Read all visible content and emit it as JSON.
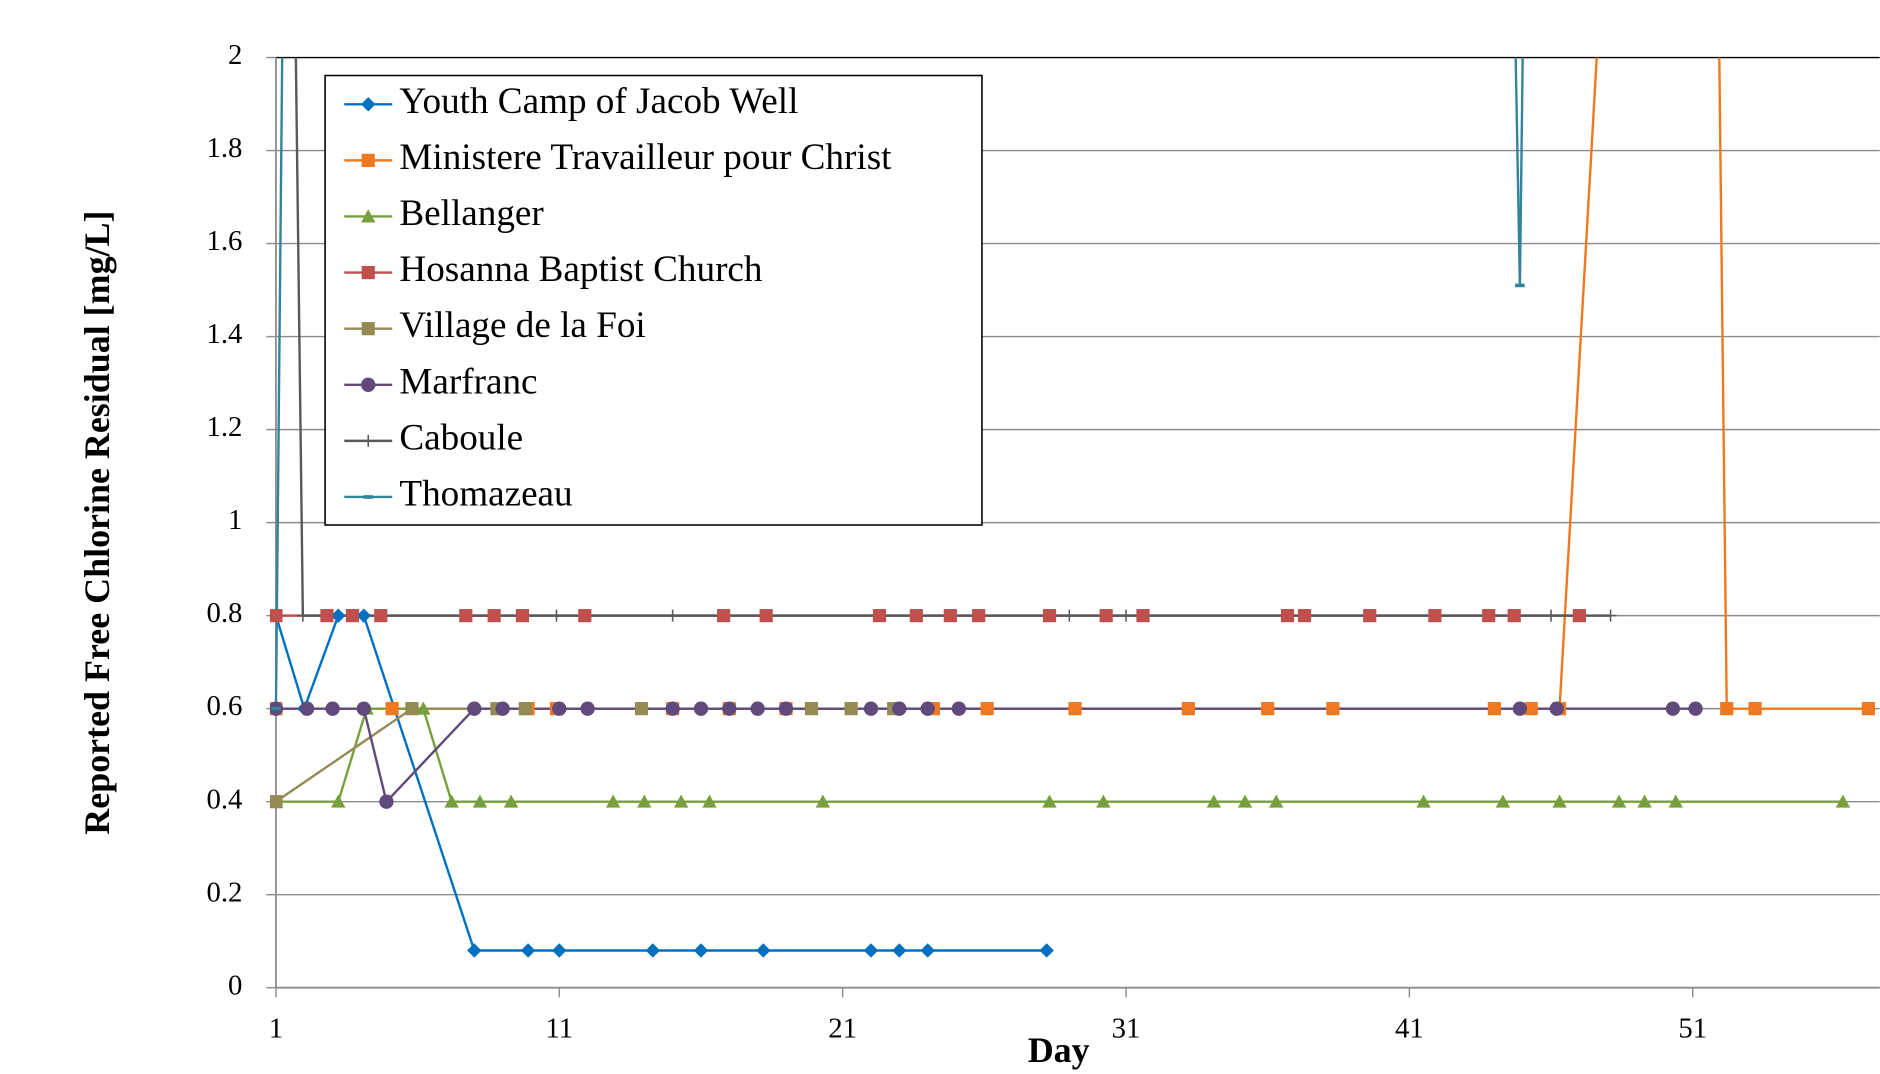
{
  "chart_data": {
    "type": "line",
    "x_label": "Day",
    "y_label": "Reported Free Chlorine Residual [mg/L]",
    "xlim": [
      1,
      57.6
    ],
    "xticks": [
      1,
      11,
      21,
      31,
      41,
      51
    ],
    "ylim": [
      0,
      2
    ],
    "yticks": [
      0,
      0.2,
      0.4,
      0.6,
      0.8,
      1,
      1.2,
      1.4,
      1.6,
      1.8,
      2
    ],
    "grid": true,
    "legend": "upper left",
    "series": [
      {
        "name": "Youth Camp of Jacob Well",
        "color": "#0070c0",
        "marker": "diamond",
        "x": [
          1,
          2,
          3.2,
          4.1,
          8,
          9.9,
          11,
          14.3,
          16,
          18.2,
          22,
          23,
          24,
          28.2
        ],
        "values": [
          0.8,
          0.6,
          0.8,
          0.8,
          0.08,
          0.08,
          0.08,
          0.08,
          0.08,
          0.08,
          0.08,
          0.08,
          0.08,
          0.08
        ]
      },
      {
        "name": "Ministere Travailleur pour Christ",
        "color": "#f07820",
        "marker": "square",
        "x": [
          1,
          5.1,
          9.9,
          10.9,
          15,
          17,
          19,
          24.2,
          26.1,
          29.2,
          33.2,
          36,
          38.3,
          44,
          45.3,
          46.3,
          47.8,
          51.9,
          52.2,
          53.2,
          57.2
        ],
        "values": [
          0.6,
          0.6,
          0.6,
          0.6,
          0.6,
          0.6,
          0.6,
          0.6,
          0.6,
          0.6,
          0.6,
          0.6,
          0.6,
          0.6,
          0.6,
          0.6,
          2.2,
          2.2,
          0.6,
          0.6,
          0.6
        ]
      },
      {
        "name": "Bellanger",
        "color": "#77a03c",
        "marker": "triangle",
        "x": [
          1,
          3.2,
          4.2,
          5.9,
          6.2,
          7.2,
          8.2,
          9.3,
          12.9,
          14,
          15.3,
          16.3,
          20.3,
          28.3,
          30.2,
          34.1,
          35.2,
          36.3,
          41.5,
          44.3,
          46.3,
          48.4,
          49.3,
          50.4,
          56.3
        ],
        "values": [
          0.4,
          0.4,
          0.6,
          0.6,
          0.6,
          0.4,
          0.4,
          0.4,
          0.4,
          0.4,
          0.4,
          0.4,
          0.4,
          0.4,
          0.4,
          0.4,
          0.4,
          0.4,
          0.4,
          0.4,
          0.4,
          0.4,
          0.4,
          0.4,
          0.4
        ]
      },
      {
        "name": "Hosanna Baptist Church",
        "color": "#c0504d",
        "marker": "square",
        "x": [
          1,
          2.8,
          3.7,
          4.7,
          7.7,
          8.7,
          9.7,
          11.9,
          16.8,
          18.3,
          22.3,
          23.6,
          24.8,
          25.8,
          28.3,
          30.3,
          31.6,
          36.7,
          37.3,
          39.6,
          41.9,
          43.8,
          44.7,
          47
        ],
        "values": [
          0.8,
          0.8,
          0.8,
          0.8,
          0.8,
          0.8,
          0.8,
          0.8,
          0.8,
          0.8,
          0.8,
          0.8,
          0.8,
          0.8,
          0.8,
          0.8,
          0.8,
          0.8,
          0.8,
          0.8,
          0.8,
          0.8,
          0.8,
          0.8
        ]
      },
      {
        "name": "Village de la Foi",
        "color": "#948a54",
        "marker": "square",
        "x": [
          1,
          5.8,
          8.8,
          9.8,
          13.9,
          19.9,
          21.3,
          22.8
        ],
        "values": [
          0.4,
          0.6,
          0.6,
          0.6,
          0.6,
          0.6,
          0.6,
          0.6
        ]
      },
      {
        "name": "Marfranc",
        "color": "#604a7b",
        "marker": "circle",
        "x": [
          1,
          2.1,
          3,
          4.1,
          4.9,
          8,
          9,
          11,
          12,
          15,
          16,
          17,
          18,
          19,
          22,
          23,
          24,
          25.1,
          44.9,
          46.2,
          50.3,
          51.1
        ],
        "values": [
          0.6,
          0.6,
          0.6,
          0.6,
          0.4,
          0.6,
          0.6,
          0.6,
          0.6,
          0.6,
          0.6,
          0.6,
          0.6,
          0.6,
          0.6,
          0.6,
          0.6,
          0.6,
          0.6,
          0.6,
          0.6,
          0.6
        ]
      },
      {
        "name": "Caboule",
        "color": "#595959",
        "marker": "plus",
        "x": [
          1.6,
          1.95,
          10.9,
          15,
          29,
          31,
          46,
          48.1
        ],
        "values": [
          2.5,
          0.8,
          0.8,
          0.8,
          0.8,
          0.8,
          0.8,
          0.8
        ]
      },
      {
        "name": "Thomazeau",
        "color": "#31849b",
        "marker": "dash",
        "x": [
          1,
          1.3,
          44.6,
          44.9,
          45.1
        ],
        "values": [
          0.6,
          2.5,
          2.5,
          1.51,
          2.5
        ]
      }
    ]
  }
}
